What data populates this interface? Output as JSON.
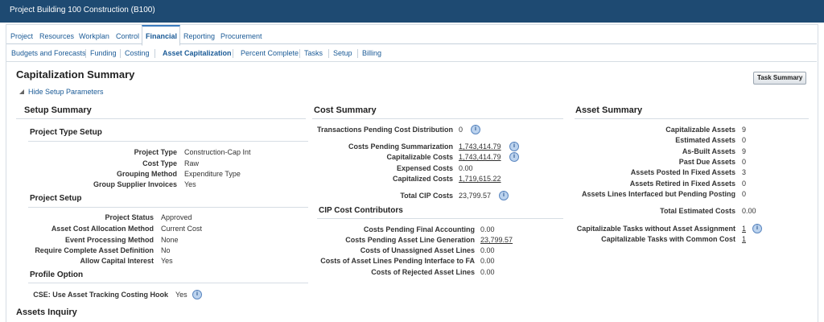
{
  "header": {
    "title": "Project Building 100 Construction (B100)"
  },
  "tabs": [
    "Project",
    "Resources",
    "Workplan",
    "Control",
    "Financial",
    "Reporting",
    "Procurement"
  ],
  "subtabs": [
    "Budgets and Forecasts",
    "Funding",
    "Costing",
    "Asset Capitalization",
    "Percent Complete",
    "Tasks",
    "Setup",
    "Billing"
  ],
  "page_title": "Capitalization Summary",
  "task_summary_button": "Task Summary",
  "hide_link": "Hide Setup Parameters",
  "setup_summary": {
    "title": "Setup Summary",
    "sections": [
      {
        "title": "Project Type Setup",
        "rows": [
          {
            "label": "Project Type",
            "value": "Construction-Cap Int"
          },
          {
            "label": "Cost Type",
            "value": "Raw"
          },
          {
            "label": "Grouping Method",
            "value": "Expenditure Type"
          },
          {
            "label": "Group Supplier Invoices",
            "value": "Yes"
          }
        ]
      },
      {
        "title": "Project Setup",
        "rows": [
          {
            "label": "Project Status",
            "value": "Approved"
          },
          {
            "label": "Asset Cost Allocation Method",
            "value": "Current Cost"
          },
          {
            "label": "Event Processing Method",
            "value": "None"
          },
          {
            "label": "Require Complete Asset Definition",
            "value": "No"
          },
          {
            "label": "Allow Capital Interest",
            "value": "Yes"
          }
        ]
      },
      {
        "title": "Profile Option",
        "rows": [
          {
            "label": "CSE: Use Asset Tracking Costing Hook",
            "value": "Yes"
          }
        ]
      }
    ]
  },
  "cost_summary": {
    "title": "Cost Summary",
    "rows": [
      {
        "label": "Transactions Pending Cost Distribution",
        "value": "0"
      },
      {
        "label": "Costs Pending Summarization",
        "value": "1,743,414.79"
      },
      {
        "label": "Capitalizable Costs",
        "value": "1,743,414.79"
      },
      {
        "label": "Expensed Costs",
        "value": "0.00"
      },
      {
        "label": "Capitalized Costs",
        "value": "1,719,615.22"
      },
      {
        "label": "Total CIP Costs",
        "value": "23,799.57"
      }
    ]
  },
  "cip_contributors": {
    "title": "CIP Cost Contributors",
    "rows": [
      {
        "label": "Costs Pending Final Accounting",
        "value": "0.00"
      },
      {
        "label": "Costs Pending Asset Line Generation",
        "value": "23,799.57"
      },
      {
        "label": "Costs of Unassigned Asset Lines",
        "value": "0.00"
      },
      {
        "label": "Costs of Asset Lines Pending Interface to FA",
        "value": "0.00"
      },
      {
        "label": "Costs of Rejected Asset Lines",
        "value": "0.00"
      }
    ]
  },
  "asset_summary": {
    "title": "Asset Summary",
    "rows": [
      {
        "label": "Capitalizable Assets",
        "value": "9"
      },
      {
        "label": "Estimated Assets",
        "value": "0"
      },
      {
        "label": "As-Built Assets",
        "value": "9"
      },
      {
        "label": "Past Due Assets",
        "value": "0"
      },
      {
        "label": "Assets Posted In Fixed Assets",
        "value": "3"
      },
      {
        "label": "Assets Retired in Fixed Assets",
        "value": "0"
      },
      {
        "label": "Assets Lines Interfaced but Pending Posting",
        "value": "0"
      },
      {
        "label": "Total Estimated Costs",
        "value": "0.00"
      },
      {
        "label": "Capitalizable Tasks without Asset Assignment",
        "value": "1"
      },
      {
        "label": "Capitalizable Tasks with Common Cost",
        "value": "1"
      }
    ]
  },
  "footer_section": "Assets Inquiry"
}
